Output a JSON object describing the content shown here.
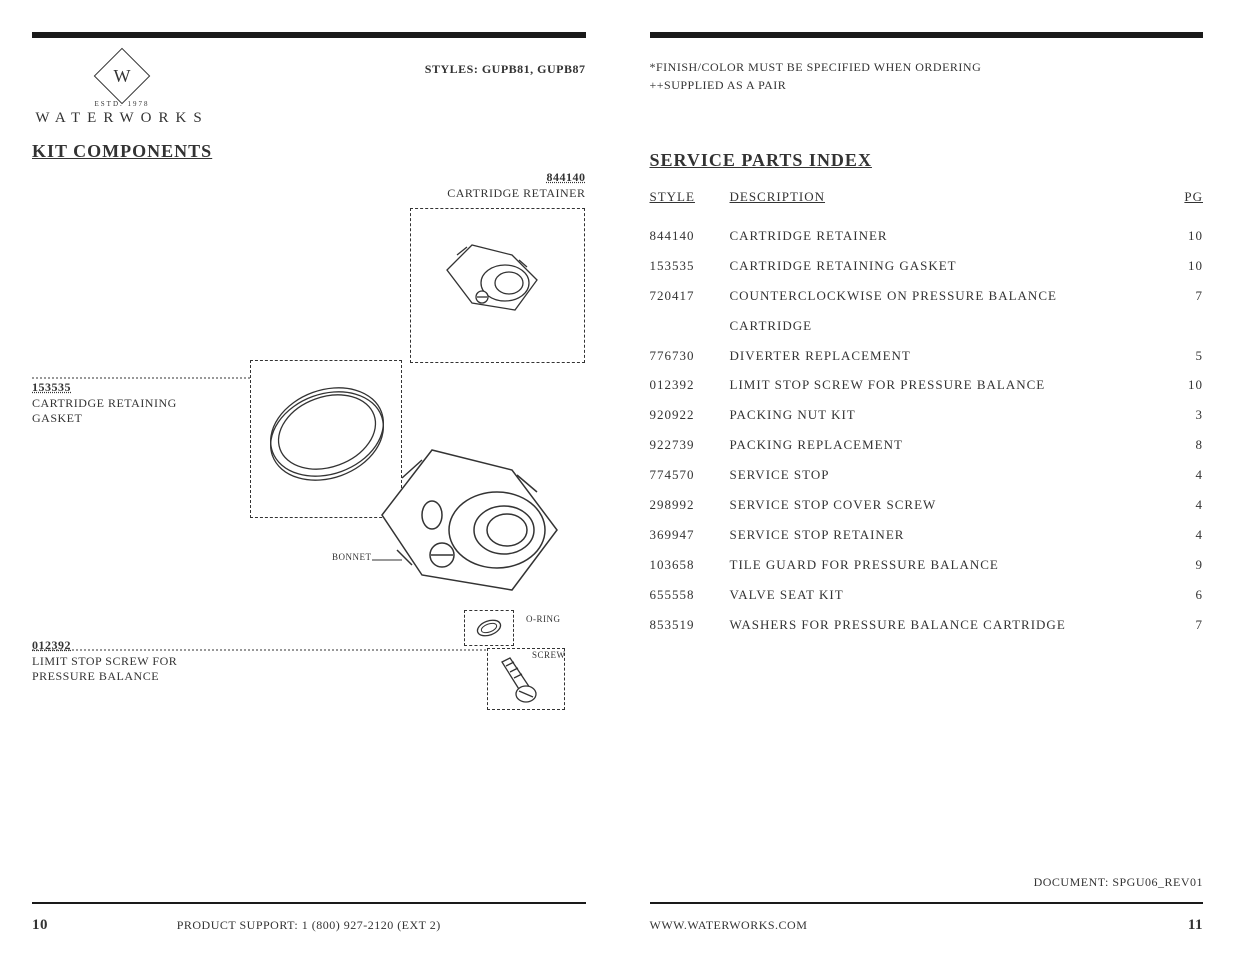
{
  "left": {
    "styles_label": "STYLES:  GUPB81, GUPB87",
    "logo_estd": "ESTD. 1978",
    "logo_name": "WATERWORKS",
    "section_title": "KIT COMPONENTS",
    "callouts": {
      "cartridge_retainer": {
        "num": "844140",
        "text": "CARTRIDGE RETAINER"
      },
      "gasket": {
        "num": "153535",
        "text1": "CARTRIDGE RETAINING",
        "text2": "GASKET"
      },
      "limit_stop": {
        "num": "012392",
        "text1": "LIMIT STOP SCREW FOR",
        "text2": "PRESSURE BALANCE"
      },
      "bonnet": "BONNET",
      "oring": "O-RING",
      "screw": "SCREW"
    },
    "page_num": "10",
    "footer_center": "PRODUCT SUPPORT: 1 (800) 927-2120 (EXT 2)"
  },
  "right": {
    "note1": "*FINISH/COLOR MUST BE SPECIFIED WHEN ORDERING",
    "note2": "++SUPPLIED AS A PAIR",
    "section_title": "SERVICE PARTS INDEX",
    "header": {
      "style": "STYLE",
      "desc": "DESCRIPTION",
      "pg": "PG"
    },
    "rows": [
      {
        "style": "844140",
        "desc": "CARTRIDGE RETAINER",
        "pg": "10"
      },
      {
        "style": "153535",
        "desc": "CARTRIDGE RETAINING GASKET",
        "pg": "10"
      },
      {
        "style": "720417",
        "desc": "COUNTERCLOCKWISE ON PRESSURE BALANCE",
        "pg": "7"
      },
      {
        "style": "",
        "desc": "CARTRIDGE",
        "pg": ""
      },
      {
        "style": "776730",
        "desc": "DIVERTER REPLACEMENT",
        "pg": "5"
      },
      {
        "style": "012392",
        "desc": "LIMIT STOP SCREW FOR PRESSURE BALANCE",
        "pg": "10"
      },
      {
        "style": "920922",
        "desc": "PACKING NUT KIT",
        "pg": "3"
      },
      {
        "style": "922739",
        "desc": "PACKING REPLACEMENT",
        "pg": "8"
      },
      {
        "style": "774570",
        "desc": "SERVICE STOP",
        "pg": "4"
      },
      {
        "style": "298992",
        "desc": "SERVICE STOP COVER SCREW",
        "pg": "4"
      },
      {
        "style": "369947",
        "desc": "SERVICE STOP RETAINER",
        "pg": "4"
      },
      {
        "style": "103658",
        "desc": "TILE GUARD FOR PRESSURE BALANCE",
        "pg": "9"
      },
      {
        "style": "655558",
        "desc": "VALVE SEAT KIT",
        "pg": "6"
      },
      {
        "style": "853519",
        "desc": "WASHERS FOR PRESSURE BALANCE CARTRIDGE",
        "pg": "7"
      }
    ],
    "doc_id": "DOCUMENT: SPGU06_REV01",
    "page_num": "11",
    "footer_left": "WWW.WATERWORKS.COM"
  }
}
